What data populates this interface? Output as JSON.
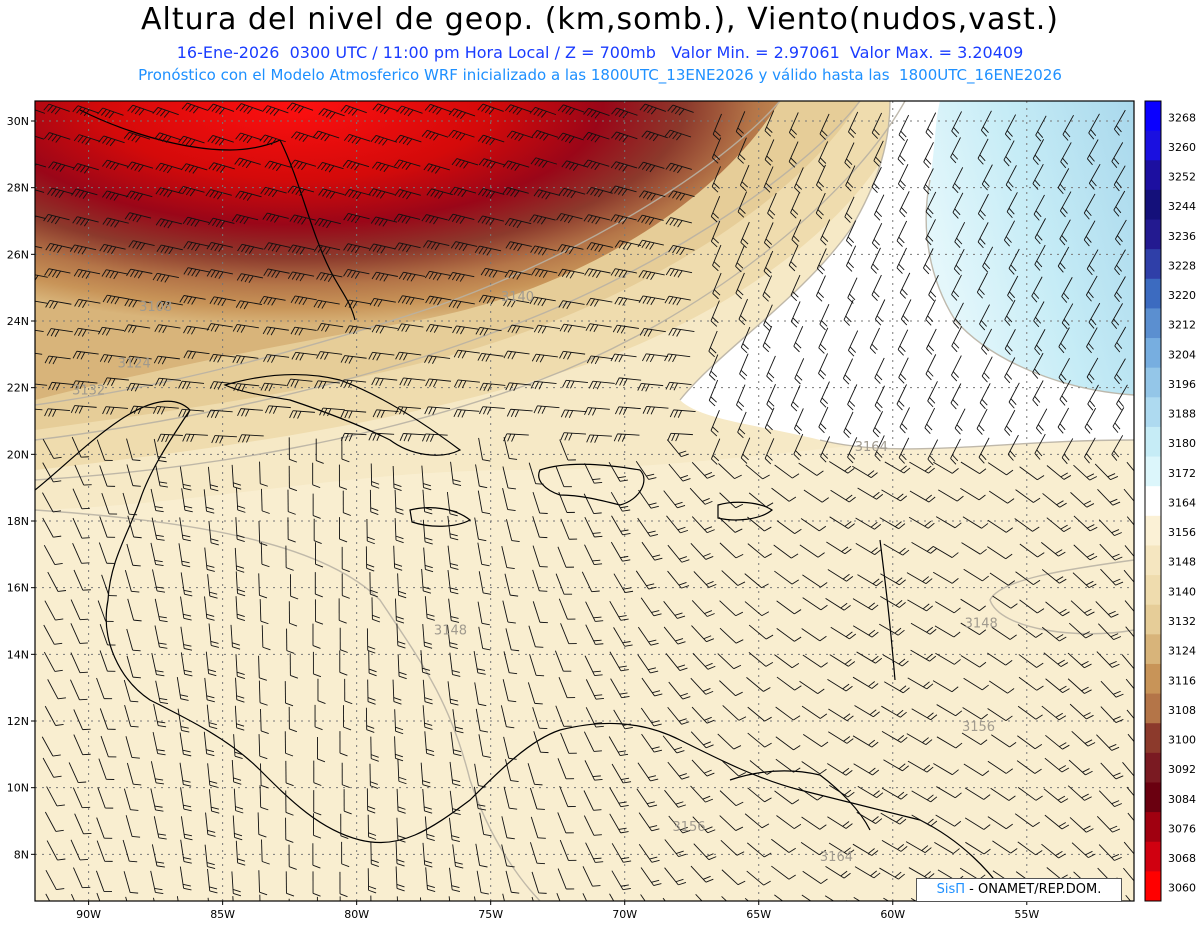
{
  "header": {
    "title": "Altura del nivel de geop. (km,somb.), Viento(nudos,vast.)",
    "subtitle_line1": "16-Ene-2026  0300 UTC / 11:00 pm Hora Local / Z = 700mb   Valor Min. = 2.97061  Valor Max. = 3.20409",
    "subtitle_line2": "Pronóstico con el Modelo Atmosferico WRF inicializado a las 1800UTC_13ENE2026 y válido hasta las  1800UTC_16ENE2026"
  },
  "map": {
    "lon_range": [
      -92,
      -51
    ],
    "lat_range": [
      6.6,
      30.6
    ],
    "lat_ticks": [
      "30N",
      "28N",
      "26N",
      "24N",
      "22N",
      "20N",
      "18N",
      "16N",
      "14N",
      "12N",
      "10N",
      "8N"
    ],
    "lat_values": [
      30,
      28,
      26,
      24,
      22,
      20,
      18,
      16,
      14,
      12,
      10,
      8
    ],
    "lon_ticks": [
      "90W",
      "85W",
      "80W",
      "75W",
      "70W",
      "65W",
      "60W",
      "55W"
    ],
    "lon_values": [
      -90,
      -85,
      -80,
      -75,
      -70,
      -65,
      -60,
      -55
    ],
    "contour_labels": [
      {
        "text": "3108",
        "lon": -87.5,
        "lat": 24.3
      },
      {
        "text": "3124",
        "lon": -88.3,
        "lat": 22.6
      },
      {
        "text": "3132",
        "lon": -90.0,
        "lat": 21.8
      },
      {
        "text": "3140",
        "lon": -74.0,
        "lat": 24.6
      },
      {
        "text": "3164",
        "lon": -60.8,
        "lat": 20.1
      },
      {
        "text": "3148",
        "lon": -76.5,
        "lat": 14.6
      },
      {
        "text": "3148",
        "lon": -56.7,
        "lat": 14.8
      },
      {
        "text": "3156",
        "lon": -56.8,
        "lat": 11.7
      },
      {
        "text": "3156",
        "lon": -67.6,
        "lat": 8.7
      },
      {
        "text": "3164",
        "lon": -62.1,
        "lat": 7.8
      }
    ]
  },
  "colorbar": {
    "levels": [
      "3268",
      "3260",
      "3252",
      "3244",
      "3236",
      "3228",
      "3220",
      "3212",
      "3204",
      "3196",
      "3188",
      "3180",
      "3172",
      "3164",
      "3156",
      "3148",
      "3140",
      "3132",
      "3124",
      "3116",
      "3108",
      "3100",
      "3092",
      "3084",
      "3076",
      "3068",
      "3060"
    ],
    "colors": [
      "#0a00ff",
      "#1a10e0",
      "#1c0fa0",
      "#14107a",
      "#231a90",
      "#2f3fa8",
      "#3c6bc0",
      "#5b8fd0",
      "#77aee0",
      "#94c6e8",
      "#aedaf0",
      "#c6ecf6",
      "#dcf6fb",
      "#ffffff",
      "#fbf1d6",
      "#f5e6c0",
      "#efdcae",
      "#e6cd98",
      "#d8b47a",
      "#c89458",
      "#b47548",
      "#8c3a2c",
      "#7a1a22",
      "#6a0010",
      "#a00010",
      "#d00010",
      "#ff0000"
    ]
  },
  "credit": {
    "sis": "SisΠ",
    "org": " - ONAMET/REP.DOM."
  }
}
